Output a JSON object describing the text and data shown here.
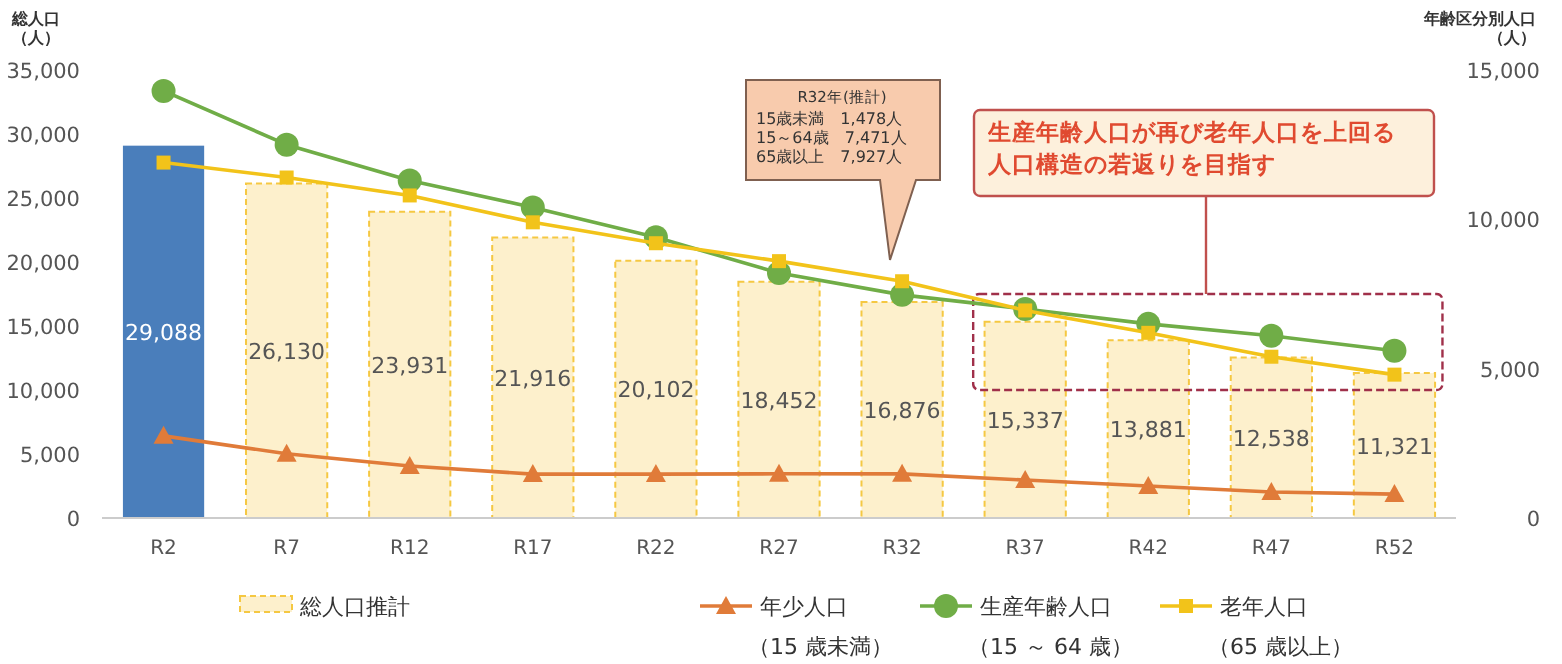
{
  "chart_data": {
    "type": "bar",
    "ylabel": "総人口（人）",
    "y2label": "年齢区分別人口（人）",
    "categories": [
      "R2",
      "R7",
      "R12",
      "R17",
      "R22",
      "R27",
      "R32",
      "R37",
      "R42",
      "R47",
      "R52"
    ],
    "series": [
      {
        "name": "総人口推計",
        "type": "bar",
        "color": "#fdf0cc",
        "colors": [
          "#4a7ebb",
          "#fdf0cc",
          "#fdf0cc",
          "#fdf0cc",
          "#fdf0cc",
          "#fdf0cc",
          "#fdf0cc",
          "#fdf0cc",
          "#fdf0cc",
          "#fdf0cc",
          "#fdf0cc"
        ],
        "values": [
          29088,
          26130,
          23931,
          21916,
          20102,
          18452,
          16876,
          15337,
          13881,
          12538,
          11321
        ],
        "value_labels": [
          "29,088",
          "26,130",
          "23,931",
          "21,916",
          "20,102",
          "18,452",
          "16,876",
          "15,337",
          "13,881",
          "12,538",
          "11,321"
        ]
      },
      {
        "name": "年少人口（15 歳未満）",
        "type": "line",
        "axis": "y2",
        "marker": "triangle",
        "color": "#e07b39",
        "values": [
          2750,
          2150,
          1740,
          1470,
          1470,
          1480,
          1478,
          1270,
          1070,
          870,
          800
        ]
      },
      {
        "name": "生産年齢人口（15 ～ 64 歳）",
        "type": "line",
        "axis": "y2",
        "marker": "circle",
        "color": "#70ad47",
        "values": [
          14300,
          12500,
          11300,
          10400,
          9400,
          8200,
          7471,
          7000,
          6500,
          6100,
          5600
        ]
      },
      {
        "name": "老年人口（65 歳以上）",
        "type": "line",
        "axis": "y2",
        "marker": "square",
        "color": "#f2c31a",
        "values": [
          11900,
          11400,
          10800,
          9900,
          9200,
          8600,
          7927,
          6950,
          6200,
          5400,
          4800
        ]
      }
    ],
    "ylim": [
      0,
      35000
    ],
    "yticks": [
      {
        "value": 0,
        "label": "0"
      },
      {
        "value": 5000,
        "label": "5,000"
      },
      {
        "value": 10000,
        "label": "10,000"
      },
      {
        "value": 15000,
        "label": "15,000"
      },
      {
        "value": 20000,
        "label": "20,000"
      },
      {
        "value": 25000,
        "label": "25,000"
      },
      {
        "value": 30000,
        "label": "30,000"
      },
      {
        "value": 35000,
        "label": "35,000"
      }
    ],
    "y2lim": [
      0,
      15000
    ],
    "y2ticks": [
      {
        "value": 0,
        "label": "0"
      },
      {
        "value": 5000,
        "label": "5,000"
      },
      {
        "value": 10000,
        "label": "10,000"
      },
      {
        "value": 15000,
        "label": "15,000"
      }
    ],
    "grid": false,
    "legend": "bottom",
    "annotations": [
      "R32年(推計)\n15歳未満　1,478人\n15～64歳　7,471人\n65歳以上　7,927人",
      "生産年齢人口が再び老年人口を上回る人口構造の若返りを目指す"
    ]
  }
}
